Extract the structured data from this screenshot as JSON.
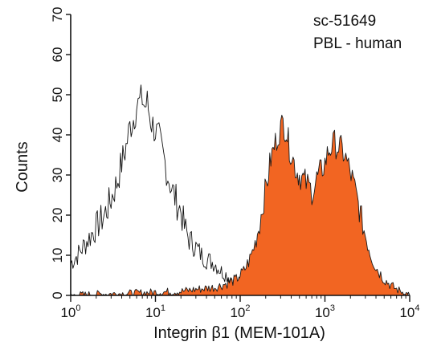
{
  "chart_data": {
    "type": "area",
    "x_scale": "log",
    "y_scale": "linear",
    "xlim": [
      1,
      10000
    ],
    "ylim": [
      0,
      70
    ],
    "grid": false,
    "legend": "none",
    "xlabel": "Integrin β1 (MEM-101A)",
    "ylabel": "Counts",
    "annotations": [
      "sc-51649",
      "PBL - human"
    ],
    "x_ticks": [
      {
        "value": 1,
        "base": "10",
        "exp": "0"
      },
      {
        "value": 10,
        "base": "10",
        "exp": "1"
      },
      {
        "value": 100,
        "base": "10",
        "exp": "2"
      },
      {
        "value": 1000,
        "base": "10",
        "exp": "3"
      },
      {
        "value": 10000,
        "base": "10",
        "exp": "4"
      }
    ],
    "y_ticks": [
      0,
      10,
      20,
      30,
      40,
      50,
      60,
      70
    ],
    "series": [
      {
        "color": "#ffffff",
        "stroke": "#111111",
        "filled": false,
        "points": [
          [
            1.0,
            8
          ],
          [
            1.2,
            10
          ],
          [
            1.5,
            13
          ],
          [
            2.0,
            17
          ],
          [
            2.5,
            20
          ],
          [
            3.0,
            24
          ],
          [
            3.5,
            28
          ],
          [
            4.0,
            33
          ],
          [
            4.5,
            37
          ],
          [
            5.0,
            42
          ],
          [
            5.5,
            44
          ],
          [
            6.0,
            47
          ],
          [
            6.5,
            48
          ],
          [
            7.0,
            49
          ],
          [
            7.5,
            47
          ],
          [
            8.0,
            48
          ],
          [
            8.5,
            45
          ],
          [
            9.0,
            43
          ],
          [
            10,
            41
          ],
          [
            11,
            39
          ],
          [
            12,
            36
          ],
          [
            13,
            33
          ],
          [
            14,
            30
          ],
          [
            16,
            26
          ],
          [
            18,
            23
          ],
          [
            20,
            21
          ],
          [
            22,
            17
          ],
          [
            25,
            14
          ],
          [
            30,
            12
          ],
          [
            35,
            10
          ],
          [
            40,
            9
          ],
          [
            50,
            8
          ],
          [
            60,
            6
          ],
          [
            70,
            5
          ],
          [
            85,
            4
          ],
          [
            100,
            3
          ],
          [
            130,
            2.5
          ],
          [
            170,
            2.5
          ],
          [
            200,
            3
          ],
          [
            250,
            4
          ],
          [
            300,
            5
          ],
          [
            350,
            4
          ],
          [
            400,
            3
          ],
          [
            500,
            2.5
          ],
          [
            700,
            2
          ],
          [
            1000,
            1.5
          ],
          [
            1500,
            1.2
          ],
          [
            2000,
            1
          ],
          [
            3000,
            0.8
          ],
          [
            5000,
            0.5
          ],
          [
            7000,
            0.3
          ],
          [
            10000,
            0
          ]
        ]
      },
      {
        "color": "#f26522",
        "stroke": "#1a1a1a",
        "filled": true,
        "points": [
          [
            1.0,
            0
          ],
          [
            2.0,
            0.3
          ],
          [
            5.0,
            0.5
          ],
          [
            10,
            0.8
          ],
          [
            20,
            1
          ],
          [
            30,
            1.5
          ],
          [
            50,
            2
          ],
          [
            70,
            3
          ],
          [
            90,
            4
          ],
          [
            110,
            6
          ],
          [
            130,
            9
          ],
          [
            150,
            13
          ],
          [
            170,
            18
          ],
          [
            190,
            24
          ],
          [
            210,
            29
          ],
          [
            230,
            34
          ],
          [
            260,
            38
          ],
          [
            290,
            41
          ],
          [
            320,
            43
          ],
          [
            350,
            41
          ],
          [
            380,
            37
          ],
          [
            420,
            34
          ],
          [
            460,
            31
          ],
          [
            500,
            30
          ],
          [
            550,
            29
          ],
          [
            600,
            28
          ],
          [
            650,
            27
          ],
          [
            700,
            26
          ],
          [
            750,
            27
          ],
          [
            800,
            29
          ],
          [
            900,
            31
          ],
          [
            1000,
            33
          ],
          [
            1100,
            36
          ],
          [
            1200,
            37
          ],
          [
            1300,
            38
          ],
          [
            1400,
            37
          ],
          [
            1500,
            37
          ],
          [
            1700,
            35
          ],
          [
            1900,
            32
          ],
          [
            2100,
            29
          ],
          [
            2400,
            24
          ],
          [
            2700,
            19
          ],
          [
            3000,
            15
          ],
          [
            3500,
            10
          ],
          [
            4000,
            7
          ],
          [
            5000,
            4
          ],
          [
            6000,
            2.5
          ],
          [
            7000,
            1.5
          ],
          [
            8000,
            1
          ],
          [
            10000,
            0
          ]
        ]
      }
    ]
  }
}
